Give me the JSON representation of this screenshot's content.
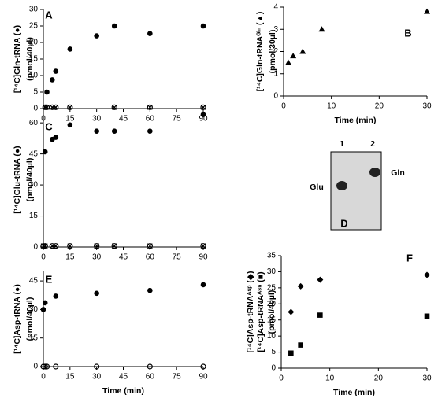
{
  "chart_data": [
    {
      "type": "scatter",
      "label": "A",
      "y_label": [
        "[¹⁴C]Gln-tRNA (●)",
        "(pmol/40µl)"
      ],
      "xlim": [
        0,
        90
      ],
      "xticks": [
        0,
        15,
        30,
        45,
        60,
        75,
        90
      ],
      "ylim": [
        0,
        30
      ],
      "yticks": [
        0,
        5,
        10,
        15,
        20,
        25,
        30
      ],
      "series": [
        {
          "marker": "circle",
          "color": "#000000",
          "x": [
            2,
            5,
            7,
            15,
            30,
            40,
            60,
            90
          ],
          "values": [
            5,
            8.7,
            11.3,
            18,
            22,
            25,
            22.7,
            25
          ]
        },
        {
          "marker": "open-circle",
          "color": "#000000",
          "x": [
            1,
            2,
            5,
            7,
            15,
            40,
            60,
            90
          ],
          "values": [
            0.4,
            0.4,
            0.4,
            0.4,
            0.4,
            0.4,
            0.4,
            0.4
          ]
        },
        {
          "marker": "cross",
          "color": "#000000",
          "x": [
            1,
            2,
            5,
            7,
            15,
            40,
            60,
            90
          ],
          "values": [
            0.4,
            0.4,
            0.4,
            0.4,
            0.4,
            0.4,
            0.4,
            0.4
          ]
        }
      ]
    },
    {
      "type": "scatter",
      "label": "B",
      "x_label": "Time (min)",
      "y_label": [
        "[¹⁴C]Gln-tRNAᴳˡⁿ (▲)",
        "(pmol/30µl)"
      ],
      "xlim": [
        0,
        30
      ],
      "xticks": [
        0,
        10,
        20,
        30
      ],
      "ylim": [
        0,
        4
      ],
      "yticks": [
        0,
        1,
        2,
        3,
        4
      ],
      "series": [
        {
          "marker": "triangle",
          "color": "#000000",
          "x": [
            1,
            2,
            4,
            8,
            30
          ],
          "values": [
            1.5,
            1.8,
            2,
            3,
            3.8
          ]
        }
      ]
    },
    {
      "type": "scatter",
      "label": "C",
      "y_label": [
        "[¹⁴C]Glu-tRNA (●)",
        "(pmol/40µl)"
      ],
      "xlim": [
        0,
        90
      ],
      "xticks": [
        0,
        15,
        30,
        45,
        60,
        75,
        90
      ],
      "ylim": [
        0,
        65
      ],
      "yticks": [
        0,
        15,
        30,
        45,
        60
      ],
      "series": [
        {
          "marker": "circle",
          "color": "#000000",
          "x": [
            1,
            5,
            7,
            15,
            30,
            40,
            60,
            90
          ],
          "values": [
            46,
            52,
            53,
            59,
            56,
            56,
            56,
            64
          ]
        },
        {
          "marker": "open-circle",
          "color": "#000000",
          "x": [
            0,
            1,
            5,
            7,
            15,
            30,
            40,
            60,
            90
          ],
          "values": [
            0.5,
            0.5,
            0.5,
            0.5,
            0.5,
            0.5,
            0.5,
            0.5,
            0.5
          ]
        },
        {
          "marker": "cross",
          "color": "#000000",
          "x": [
            0,
            1,
            5,
            7,
            15,
            30,
            40,
            60,
            90
          ],
          "values": [
            0.5,
            0.5,
            0.5,
            0.5,
            0.5,
            0.5,
            0.5,
            0.5,
            0.5
          ]
        }
      ]
    },
    {
      "type": "scatter",
      "label": "E",
      "x_label": "Time (min)",
      "y_label": [
        "[¹⁴C]Asp-tRNA (●)",
        "(pmol/40µl)"
      ],
      "xlim": [
        0,
        90
      ],
      "xticks": [
        0,
        15,
        30,
        45,
        60,
        75,
        90
      ],
      "ylim": [
        0,
        50
      ],
      "yticks": [
        0,
        15,
        30,
        45
      ],
      "series": [
        {
          "marker": "circle",
          "color": "#000000",
          "x": [
            0,
            1,
            7,
            30,
            60,
            90
          ],
          "values": [
            30,
            33.5,
            37,
            38.5,
            40,
            43
          ]
        },
        {
          "marker": "open-circle",
          "color": "#000000",
          "x": [
            0,
            1,
            2,
            7,
            30,
            60,
            90
          ],
          "values": [
            0,
            0,
            0,
            0,
            0,
            0,
            0
          ]
        }
      ]
    },
    {
      "type": "scatter",
      "label": "F",
      "x_label": "Time (min)",
      "y_label": [
        "[¹⁴C]Asp-tRNAᴬˢᵖ (◆)",
        "[¹⁴C]Asp-tRNAᴬˢⁿ (■)",
        "(pmol/40µl)"
      ],
      "xlim": [
        0,
        30
      ],
      "xticks": [
        0,
        10,
        20,
        30
      ],
      "ylim": [
        0,
        35
      ],
      "yticks": [
        0,
        5,
        10,
        15,
        20,
        25,
        30,
        35
      ],
      "series": [
        {
          "marker": "diamond",
          "color": "#000000",
          "x": [
            2,
            4,
            8,
            30
          ],
          "values": [
            17.5,
            25.5,
            27.5,
            29
          ]
        },
        {
          "marker": "square",
          "color": "#000000",
          "x": [
            2,
            4,
            8,
            30
          ],
          "values": [
            4.7,
            7.2,
            16.5,
            16.2
          ]
        }
      ]
    }
  ],
  "gel": {
    "label": "D",
    "lanes": [
      "1",
      "2"
    ],
    "bands": [
      "Glu",
      "Gln"
    ]
  }
}
